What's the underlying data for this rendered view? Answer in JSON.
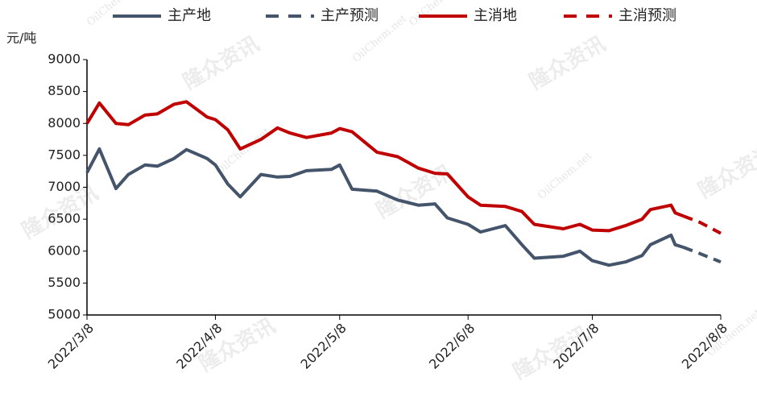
{
  "chart_data": {
    "type": "line",
    "y_label": "元/吨",
    "watermarks": [
      "隆众资讯",
      "OilChem.net"
    ],
    "x": [
      "2022/3/8",
      "2022/3/11",
      "2022/3/15",
      "2022/3/18",
      "2022/3/22",
      "2022/3/25",
      "2022/3/29",
      "2022/4/1",
      "2022/4/6",
      "2022/4/8",
      "2022/4/11",
      "2022/4/14",
      "2022/4/19",
      "2022/4/23",
      "2022/4/26",
      "2022/4/30",
      "2022/5/6",
      "2022/5/8",
      "2022/5/11",
      "2022/5/17",
      "2022/5/22",
      "2022/5/27",
      "2022/5/31",
      "2022/6/3",
      "2022/6/8",
      "2022/6/11",
      "2022/6/17",
      "2022/6/21",
      "2022/6/24",
      "2022/7/1",
      "2022/7/5",
      "2022/7/8",
      "2022/7/12",
      "2022/7/16",
      "2022/7/20",
      "2022/7/22",
      "2022/7/27",
      "2022/7/28",
      "2022/7/30",
      "2022/8/3",
      "2022/8/8"
    ],
    "series": [
      {
        "name": "主产地",
        "color": "#44546a",
        "dash": false,
        "values": [
          7230,
          7600,
          6980,
          7200,
          7350,
          7330,
          7450,
          7590,
          7450,
          7350,
          7050,
          6850,
          7200,
          7160,
          7170,
          7260,
          7280,
          7350,
          6970,
          6940,
          6800,
          6720,
          6740,
          6520,
          6420,
          6300,
          6400,
          6100,
          5890,
          5920,
          6000,
          5850,
          5780,
          5830,
          5930,
          6100,
          6250,
          6100,
          6060,
          null,
          null
        ]
      },
      {
        "name": "主产预测",
        "color": "#44546a",
        "dash": true,
        "values": [
          null,
          null,
          null,
          null,
          null,
          null,
          null,
          null,
          null,
          null,
          null,
          null,
          null,
          null,
          null,
          null,
          null,
          null,
          null,
          null,
          null,
          null,
          null,
          null,
          null,
          null,
          null,
          null,
          null,
          null,
          null,
          null,
          null,
          null,
          null,
          null,
          null,
          null,
          6060,
          5960,
          5830
        ]
      },
      {
        "name": "主消地",
        "color": "#c00000",
        "dash": false,
        "values": [
          8000,
          8320,
          8000,
          7980,
          8130,
          8150,
          8300,
          8340,
          8100,
          8060,
          7900,
          7600,
          7750,
          7930,
          7850,
          7780,
          7850,
          7920,
          7870,
          7550,
          7480,
          7300,
          7220,
          7210,
          6850,
          6720,
          6700,
          6620,
          6420,
          6350,
          6420,
          6330,
          6320,
          6400,
          6500,
          6650,
          6720,
          6600,
          6550,
          null,
          null
        ]
      },
      {
        "name": "主消预测",
        "color": "#c00000",
        "dash": true,
        "values": [
          null,
          null,
          null,
          null,
          null,
          null,
          null,
          null,
          null,
          null,
          null,
          null,
          null,
          null,
          null,
          null,
          null,
          null,
          null,
          null,
          null,
          null,
          null,
          null,
          null,
          null,
          null,
          null,
          null,
          null,
          null,
          null,
          null,
          null,
          null,
          null,
          null,
          null,
          6550,
          6450,
          6280
        ]
      }
    ],
    "xlim": [
      "2022/3/8",
      "2022/8/8"
    ],
    "xticks": [
      "2022/3/8",
      "2022/4/8",
      "2022/5/8",
      "2022/6/8",
      "2022/7/8",
      "2022/8/8"
    ],
    "ylim": [
      5000,
      9000
    ],
    "yticks": [
      5000,
      5500,
      6000,
      6500,
      7000,
      7500,
      8000,
      8500,
      9000
    ],
    "grid": false,
    "legend": "top"
  }
}
